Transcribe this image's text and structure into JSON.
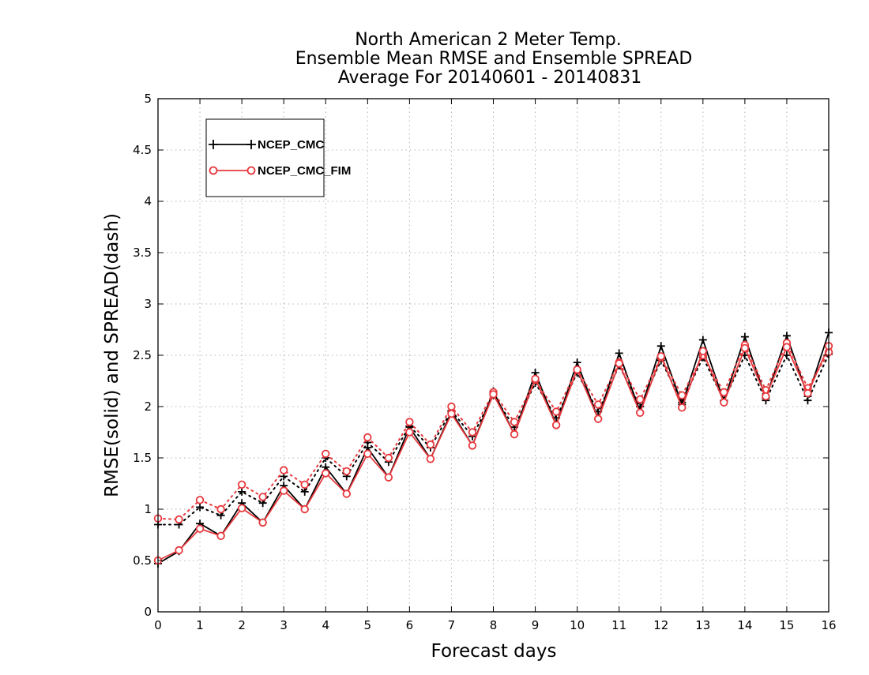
{
  "chart_data": {
    "type": "line",
    "title": [
      "North American 2 Meter Temp.",
      "Ensemble Mean RMSE and Ensemble SPREAD",
      "Average For 20140601 - 20140831"
    ],
    "xlabel": "Forecast days",
    "ylabel": "RMSE(solid) and SPREAD(dash)",
    "xlim": [
      0,
      16
    ],
    "ylim": [
      0,
      5
    ],
    "x_ticks": [
      "0",
      "1",
      "2",
      "3",
      "4",
      "5",
      "6",
      "7",
      "8",
      "9",
      "10",
      "11",
      "12",
      "13",
      "14",
      "15",
      "16"
    ],
    "y_ticks": [
      "0",
      "0.5",
      "1",
      "1.5",
      "2",
      "2.5",
      "3",
      "3.5",
      "4",
      "4.5",
      "5"
    ],
    "grid": true,
    "legend_position": "top-left",
    "x": [
      0,
      0.5,
      1,
      1.5,
      2,
      2.5,
      3,
      3.5,
      4,
      4.5,
      5,
      5.5,
      6,
      6.5,
      7,
      7.5,
      8,
      8.5,
      9,
      9.5,
      10,
      10.5,
      11,
      11.5,
      12,
      12.5,
      13,
      13.5,
      14,
      14.5,
      15,
      15.5,
      16
    ],
    "series": [
      {
        "name": "NCEP_CMC",
        "color": "#000000",
        "marker": "plus",
        "rmse": [
          0.47,
          0.59,
          0.86,
          0.74,
          1.06,
          0.87,
          1.23,
          1.0,
          1.41,
          1.15,
          1.6,
          1.31,
          1.8,
          1.49,
          1.95,
          1.62,
          2.15,
          1.73,
          2.33,
          1.82,
          2.43,
          1.88,
          2.52,
          1.95,
          2.59,
          2.02,
          2.65,
          2.05,
          2.68,
          2.08,
          2.69,
          2.1,
          2.72
        ],
        "spread": [
          0.85,
          0.85,
          1.02,
          0.94,
          1.17,
          1.06,
          1.32,
          1.17,
          1.5,
          1.32,
          1.65,
          1.46,
          1.81,
          1.6,
          1.96,
          1.71,
          2.11,
          1.8,
          2.23,
          1.89,
          2.33,
          1.95,
          2.4,
          2.0,
          2.45,
          2.04,
          2.48,
          2.06,
          2.5,
          2.06,
          2.5,
          2.06,
          2.51
        ]
      },
      {
        "name": "NCEP_CMC_FIM",
        "color": "#e8383d",
        "marker": "circle",
        "rmse": [
          0.5,
          0.6,
          0.81,
          0.74,
          1.01,
          0.87,
          1.18,
          1.0,
          1.35,
          1.15,
          1.54,
          1.31,
          1.75,
          1.49,
          1.93,
          1.62,
          2.12,
          1.73,
          2.27,
          1.82,
          2.36,
          1.88,
          2.42,
          1.94,
          2.49,
          1.99,
          2.54,
          2.04,
          2.57,
          2.1,
          2.58,
          2.13,
          2.59
        ],
        "spread": [
          0.91,
          0.9,
          1.09,
          1.0,
          1.24,
          1.12,
          1.38,
          1.24,
          1.54,
          1.37,
          1.7,
          1.5,
          1.85,
          1.63,
          2.0,
          1.75,
          2.14,
          1.85,
          2.26,
          1.95,
          2.36,
          2.02,
          2.43,
          2.07,
          2.48,
          2.11,
          2.5,
          2.14,
          2.6,
          2.16,
          2.62,
          2.18,
          2.53
        ]
      }
    ]
  }
}
